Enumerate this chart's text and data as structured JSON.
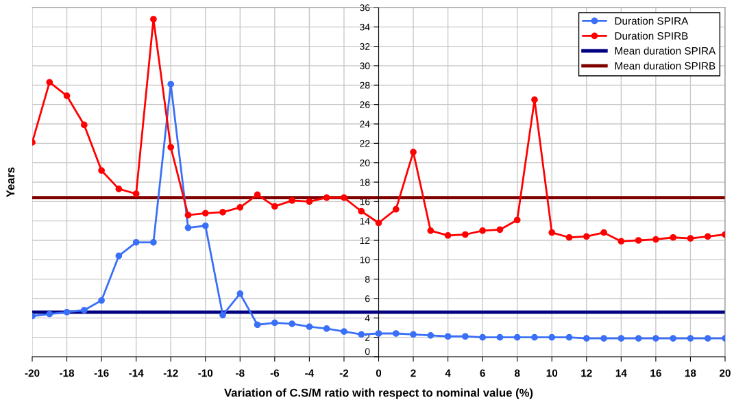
{
  "chart_data": {
    "type": "line",
    "xlabel": "Variation of C.S/M ratio with respect to nominal value (%)",
    "ylabel": "Years",
    "xlim": [
      -20,
      20
    ],
    "xticks": [
      -20,
      -18,
      -16,
      -14,
      -12,
      -10,
      -8,
      -6,
      -4,
      -2,
      0,
      2,
      4,
      6,
      8,
      10,
      12,
      14,
      16,
      18,
      20
    ],
    "ylim": [
      0,
      36
    ],
    "yticks": [
      0,
      2,
      4,
      6,
      8,
      10,
      12,
      14,
      16,
      18,
      20,
      22,
      24,
      26,
      28,
      30,
      32,
      34,
      36
    ],
    "x": [
      -20,
      -19,
      -18,
      -17,
      -16,
      -15,
      -14,
      -13,
      -12,
      -11,
      -10,
      -9,
      -8,
      -7,
      -6,
      -5,
      -4,
      -3,
      -2,
      -1,
      0,
      1,
      2,
      3,
      4,
      5,
      6,
      7,
      8,
      9,
      10,
      11,
      12,
      13,
      14,
      15,
      16,
      17,
      18,
      19,
      20
    ],
    "grid": true,
    "legend": "top right",
    "marker": "circle",
    "line_style": "solid",
    "series": [
      {
        "name": "Duration SPIRA",
        "color": "#3a6ff7",
        "values": [
          4.2,
          4.4,
          4.6,
          4.8,
          5.8,
          10.4,
          11.8,
          11.8,
          28.1,
          13.3,
          13.5,
          4.3,
          6.5,
          3.3,
          3.5,
          3.4,
          3.1,
          2.9,
          2.6,
          2.3,
          2.4,
          2.4,
          2.3,
          2.2,
          2.1,
          2.1,
          2.0,
          2.0,
          2.0,
          2.0,
          2.0,
          2.0,
          1.9,
          1.9,
          1.9,
          1.9,
          1.9,
          1.9,
          1.9,
          1.9,
          1.9
        ]
      },
      {
        "name": "Duration SPIRB",
        "color": "#ff0000",
        "values": [
          22.1,
          28.3,
          26.9,
          23.9,
          19.2,
          17.3,
          16.8,
          34.8,
          21.6,
          14.6,
          14.8,
          14.9,
          15.4,
          16.7,
          15.5,
          16.1,
          16.0,
          16.4,
          16.4,
          15.0,
          13.8,
          15.2,
          21.1,
          13.0,
          12.5,
          12.6,
          13.0,
          13.1,
          14.1,
          26.5,
          12.8,
          12.3,
          12.4,
          12.8,
          11.9,
          12.0,
          12.1,
          12.3,
          12.2,
          12.4,
          12.6
        ]
      }
    ],
    "ref_lines": [
      {
        "axis": "y",
        "value": 4.6,
        "label": "Mean duration SPIRA",
        "color": "#000080",
        "line_style": "solid"
      },
      {
        "axis": "y",
        "value": 16.4,
        "label": "Mean duration SPIRB",
        "color": "#800000",
        "line_style": "solid"
      }
    ]
  }
}
